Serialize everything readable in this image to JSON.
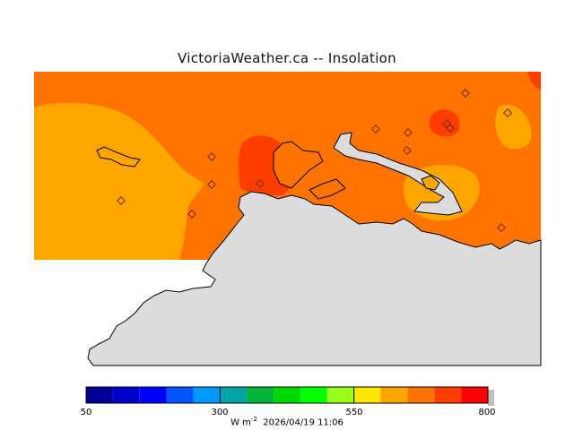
{
  "title": "VictoriaWeather.ca -- Insolation",
  "colorbar": {
    "tick_labels": [
      "50",
      "300",
      "550",
      "800"
    ],
    "unit_text": "W m",
    "unit_exponent": "-2",
    "timestamp": "2026/04/19 11:06",
    "colors": [
      "#000099",
      "#0000cc",
      "#0000ff",
      "#0055ff",
      "#0099ff",
      "#00a6a6",
      "#00b339",
      "#00d900",
      "#00ff00",
      "#99ff1a",
      "#ffe600",
      "#ffa500",
      "#ff7300",
      "#ff3d00",
      "#ff0000"
    ]
  },
  "map": {
    "land_color": "#dcdcdc",
    "water_fill_colors": {
      "orange": "#ff7300",
      "light_orange": "#ffa500",
      "red_orange": "#ff3d00"
    }
  }
}
